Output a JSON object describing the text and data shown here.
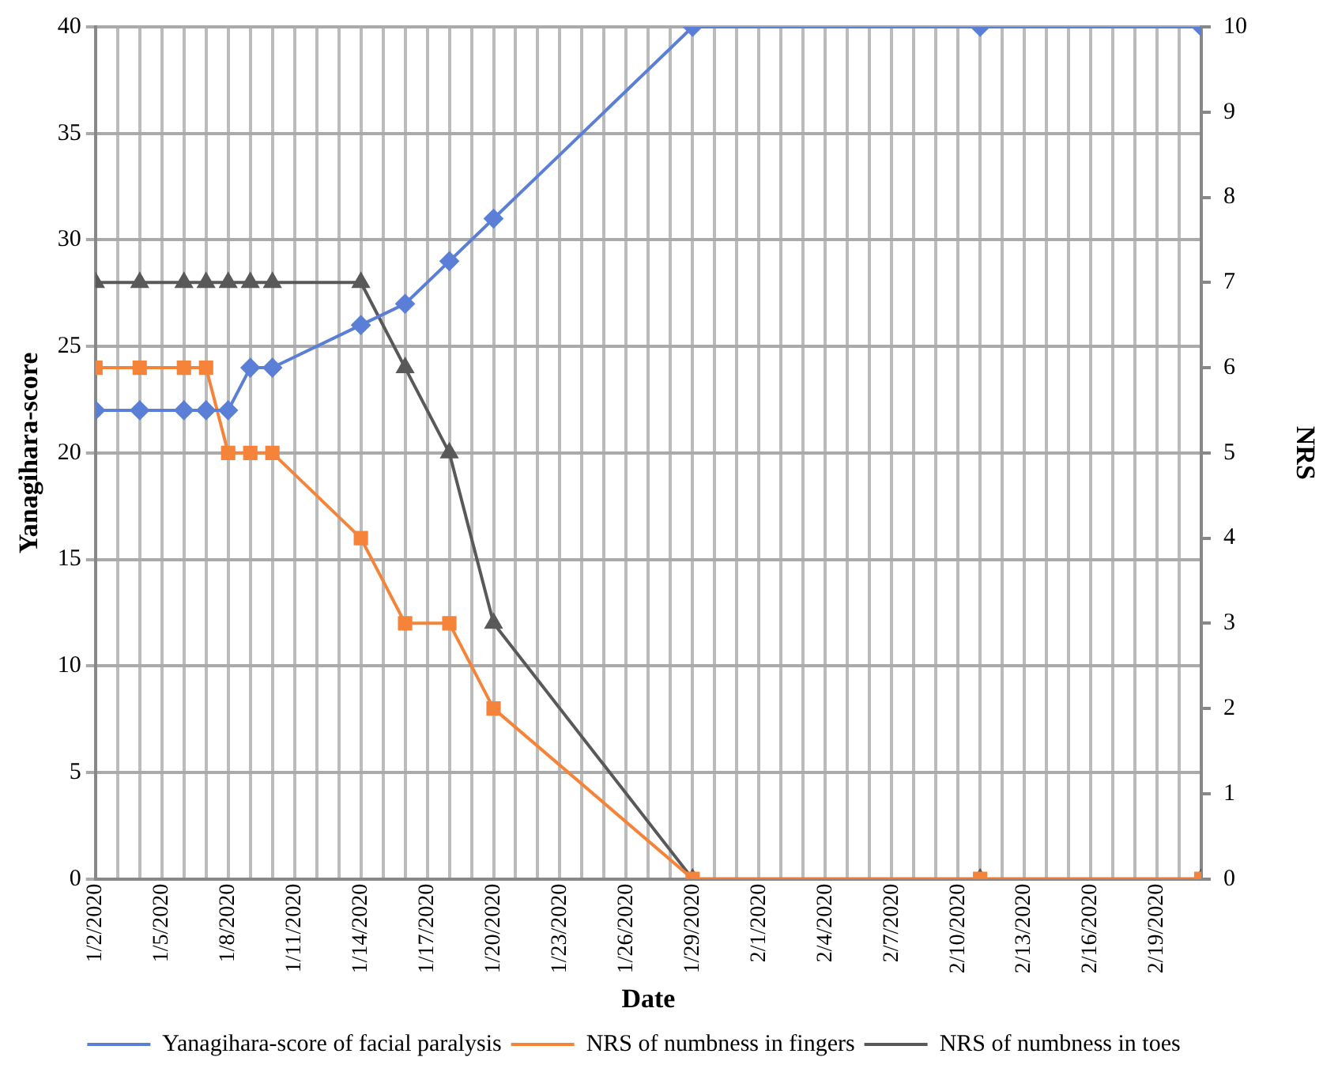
{
  "chart_data": {
    "type": "line",
    "xlabel": "Date",
    "ylabel": "Yanagihara-score",
    "y2label": "NRS",
    "x": [
      "2020-01-02",
      "2020-01-04",
      "2020-01-06",
      "2020-01-07",
      "2020-01-08",
      "2020-01-09",
      "2020-01-10",
      "2020-01-14",
      "2020-01-16",
      "2020-01-18",
      "2020-01-20",
      "2020-01-29",
      "2020-02-11",
      "2020-02-21"
    ],
    "series": [
      {
        "name": "Yanagihara-score of facial paralysis",
        "color": "#5b7fd6",
        "marker": "diamond",
        "values": [
          22,
          22,
          22,
          22,
          22,
          24,
          24,
          26,
          27,
          29,
          31,
          40,
          40,
          40
        ]
      },
      {
        "name": "NRS of numbness in fingers",
        "color": "#f5843a",
        "marker": "square",
        "axis": "y2",
        "values": [
          6,
          6,
          6,
          6,
          5,
          5,
          5,
          4,
          3,
          3,
          2,
          0,
          0,
          0
        ]
      },
      {
        "name": "NRS of numbness in toes",
        "color": "#595959",
        "marker": "triangle",
        "axis": "y2",
        "values": [
          7,
          7,
          7,
          7,
          7,
          7,
          7,
          7,
          6,
          5,
          3,
          0,
          0,
          0
        ]
      }
    ],
    "xlim": [
      "2020-01-02",
      "2020-02-21"
    ],
    "xticks": [
      {
        "value": "2020-01-02",
        "label": "1/2/2020"
      },
      {
        "value": "2020-01-05",
        "label": "1/5/2020"
      },
      {
        "value": "2020-01-08",
        "label": "1/8/2020"
      },
      {
        "value": "2020-01-11",
        "label": "1/11/2020"
      },
      {
        "value": "2020-01-14",
        "label": "1/14/2020"
      },
      {
        "value": "2020-01-17",
        "label": "1/17/2020"
      },
      {
        "value": "2020-01-20",
        "label": "1/20/2020"
      },
      {
        "value": "2020-01-23",
        "label": "1/23/2020"
      },
      {
        "value": "2020-01-26",
        "label": "1/26/2020"
      },
      {
        "value": "2020-01-29",
        "label": "1/29/2020"
      },
      {
        "value": "2020-02-01",
        "label": "2/1/2020"
      },
      {
        "value": "2020-02-04",
        "label": "2/4/2020"
      },
      {
        "value": "2020-02-07",
        "label": "2/7/2020"
      },
      {
        "value": "2020-02-10",
        "label": "2/10/2020"
      },
      {
        "value": "2020-02-13",
        "label": "2/13/2020"
      },
      {
        "value": "2020-02-16",
        "label": "2/16/2020"
      },
      {
        "value": "2020-02-19",
        "label": "2/19/2020"
      }
    ],
    "ylim": [
      0,
      40
    ],
    "yticks": [
      0,
      5,
      10,
      15,
      20,
      25,
      30,
      35,
      40
    ],
    "y2lim": [
      0,
      10
    ],
    "y2ticks": [
      0,
      1,
      2,
      3,
      4,
      5,
      6,
      7,
      8,
      9,
      10
    ],
    "grid": true,
    "legend": "bottom"
  }
}
